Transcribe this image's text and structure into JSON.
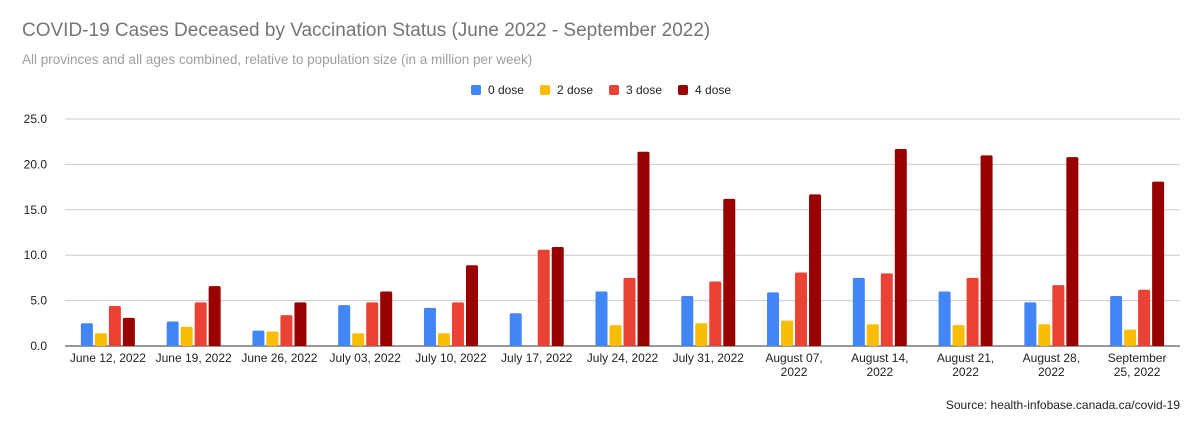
{
  "title": "COVID-19 Cases Deceased by Vaccination Status (June 2022 - September 2022)",
  "subtitle": "All provinces and all ages combined, relative to population size (in a million per week)",
  "source": "Source: health-infobase.canada.ca/covid-19",
  "chart_data": {
    "type": "bar",
    "title": "COVID-19 Cases Deceased by Vaccination Status (June 2022 - September 2022)",
    "subtitle": "All provinces and all ages combined, relative to population size (in a million per week)",
    "xlabel": "",
    "ylabel": "",
    "ylim": [
      0,
      25
    ],
    "yticks": [
      "0.0",
      "5.0",
      "10.0",
      "15.0",
      "20.0",
      "25.0"
    ],
    "grid": true,
    "legend_position": "top-center",
    "categories": [
      [
        "June 12, 2022"
      ],
      [
        "June 19, 2022"
      ],
      [
        "June 26, 2022"
      ],
      [
        "July 03, 2022"
      ],
      [
        "July 10, 2022"
      ],
      [
        "July 17, 2022"
      ],
      [
        "July 24, 2022"
      ],
      [
        "July 31, 2022"
      ],
      [
        "August 07,",
        "2022"
      ],
      [
        "August 14,",
        "2022"
      ],
      [
        "August 21,",
        "2022"
      ],
      [
        "August 28,",
        "2022"
      ],
      [
        "September",
        "25, 2022"
      ]
    ],
    "series": [
      {
        "name": "0 dose",
        "color": "#4285f4",
        "values": [
          2.5,
          2.7,
          1.7,
          4.5,
          4.2,
          3.6,
          6.0,
          5.5,
          5.9,
          7.5,
          6.0,
          4.8,
          5.5
        ]
      },
      {
        "name": "2 dose",
        "color": "#fbbc04",
        "values": [
          1.4,
          2.1,
          1.6,
          1.4,
          1.4,
          0,
          2.3,
          2.5,
          2.8,
          2.4,
          2.3,
          2.4,
          1.8
        ]
      },
      {
        "name": "3 dose",
        "color": "#ea4335",
        "values": [
          4.4,
          4.8,
          3.4,
          4.8,
          4.8,
          10.6,
          7.5,
          7.1,
          8.1,
          8.0,
          7.5,
          6.7,
          6.2
        ]
      },
      {
        "name": "4 dose",
        "color": "#990000",
        "values": [
          3.1,
          6.6,
          4.8,
          6.0,
          8.9,
          10.9,
          21.4,
          16.2,
          16.7,
          21.7,
          21.0,
          20.8,
          18.1
        ]
      }
    ]
  }
}
